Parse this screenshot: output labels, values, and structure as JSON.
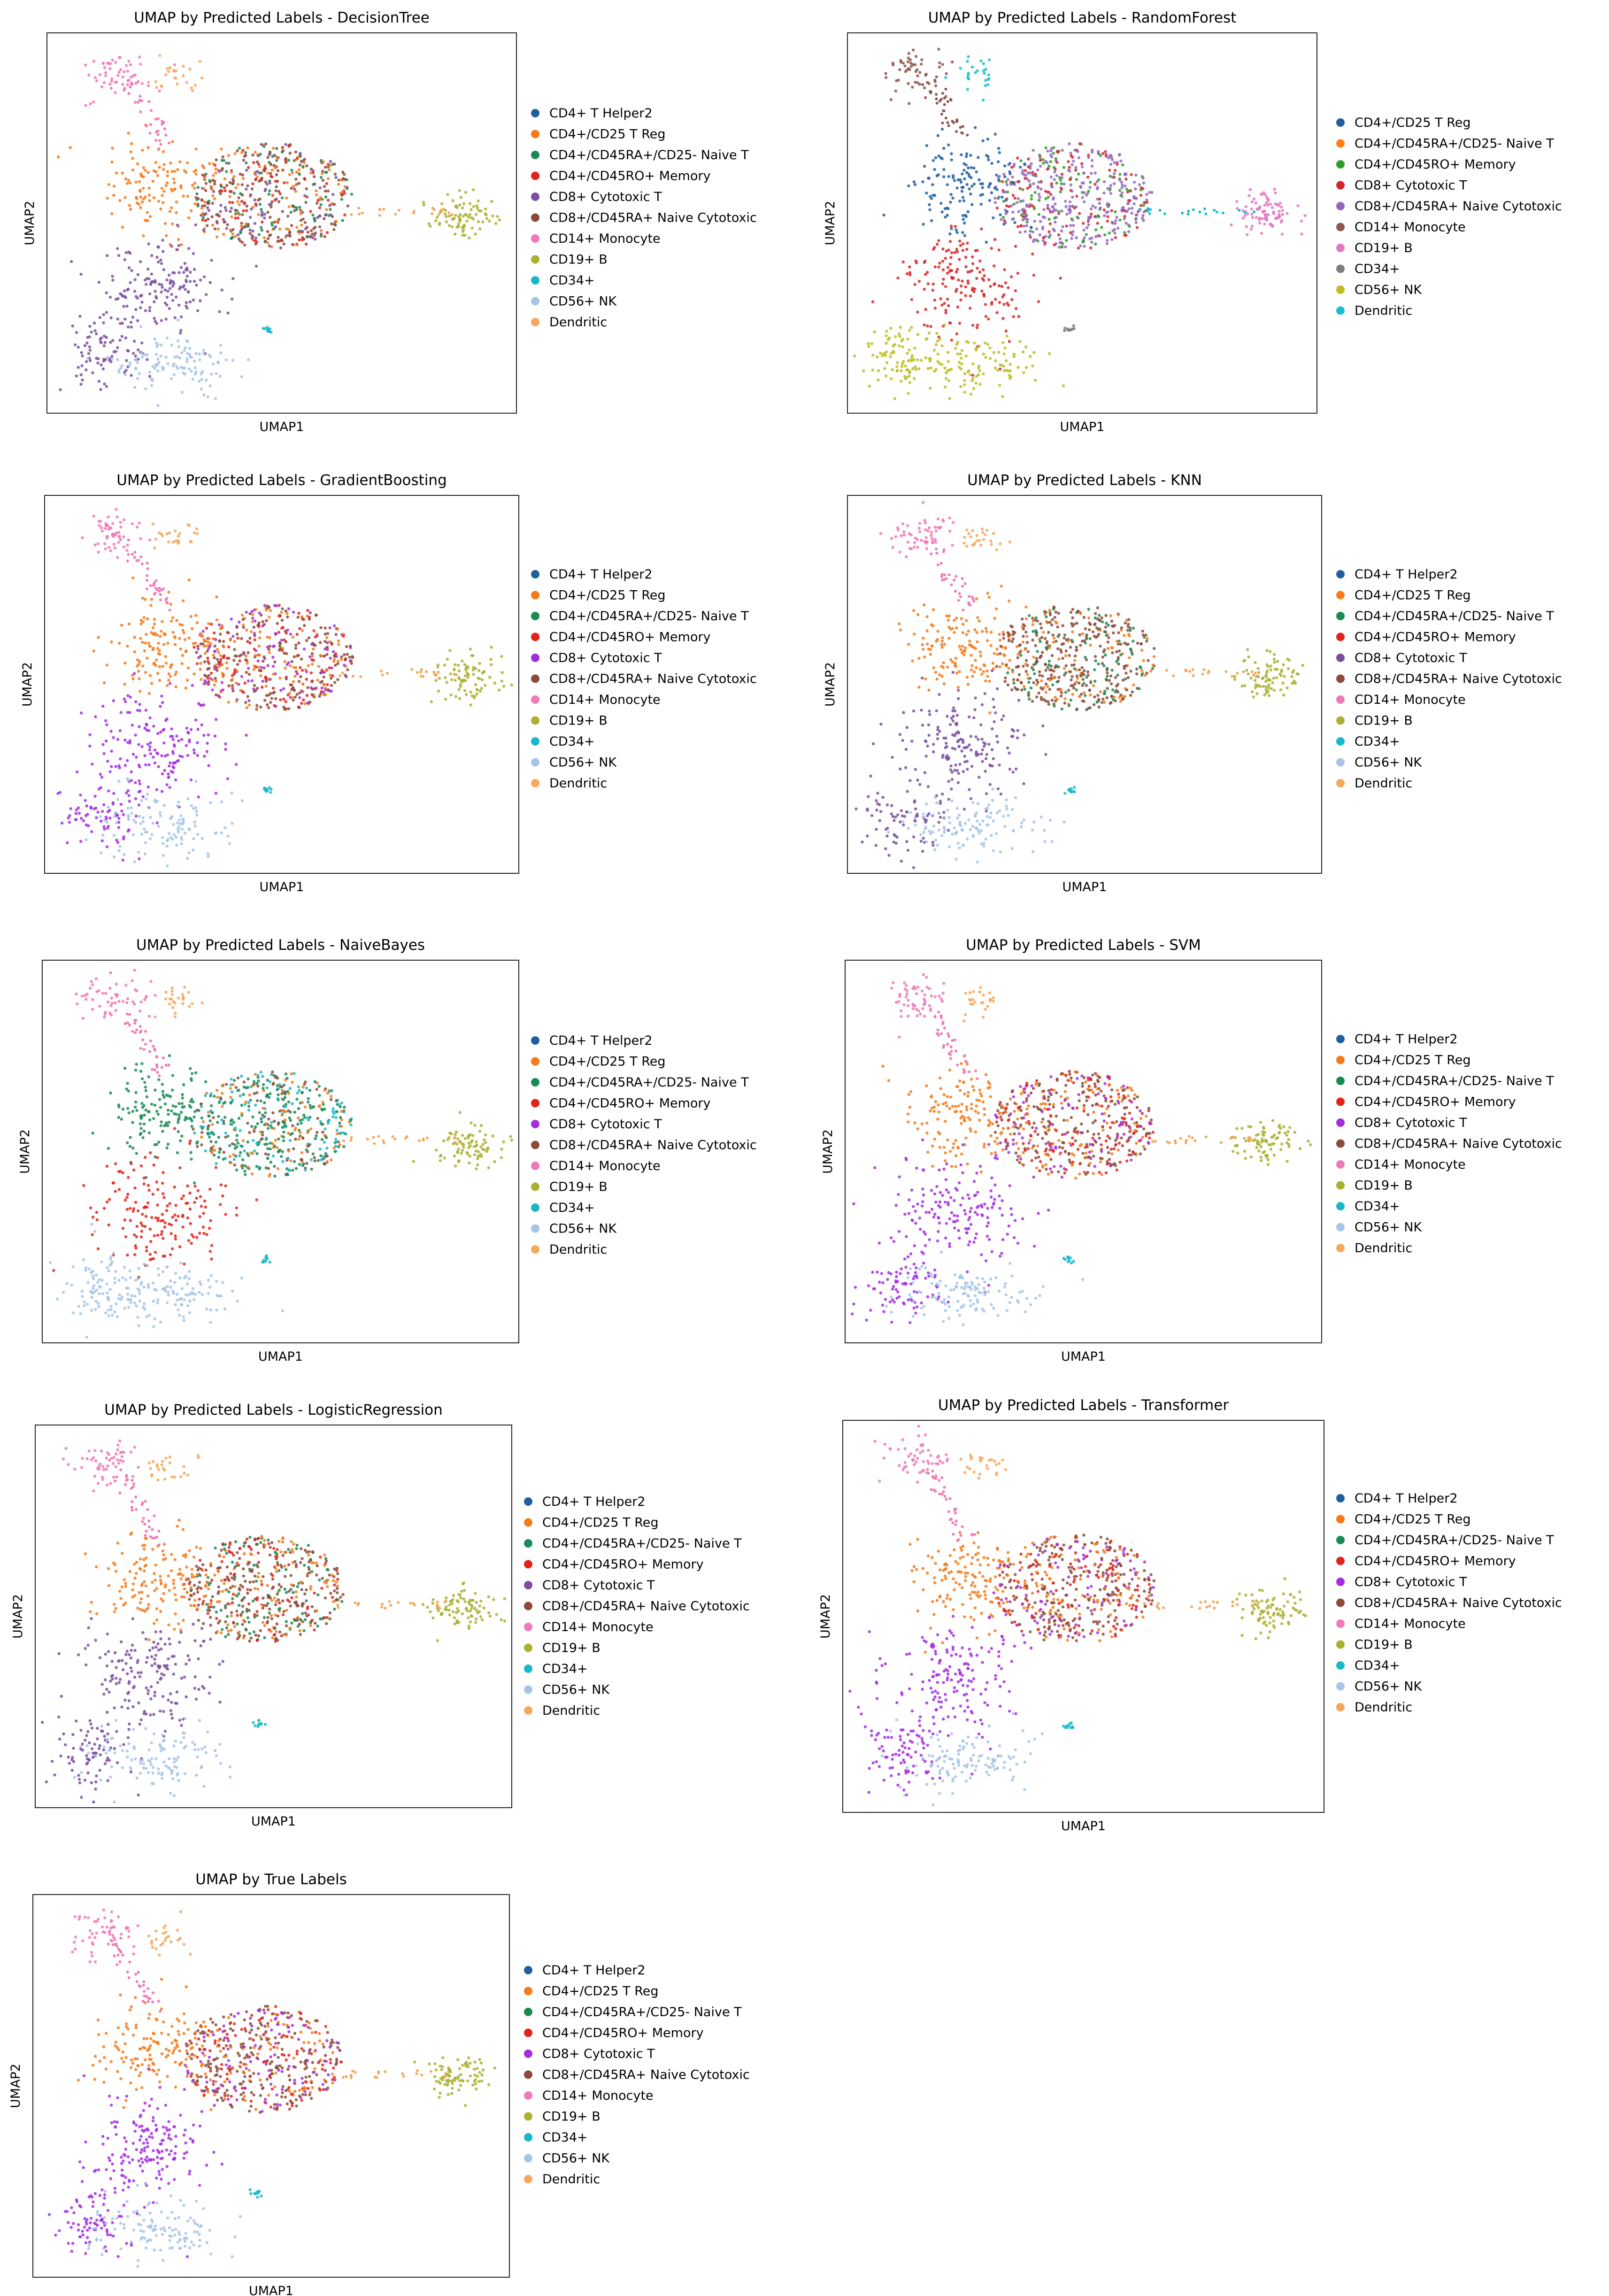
{
  "axis_labels": {
    "x": "UMAP1",
    "y": "UMAP2"
  },
  "palette": {
    "CD4+ T Helper2": "#1f5fa0",
    "CD4+/CD25 T Reg": "#f57a1a",
    "CD4+/CD45RA+/CD25- Naive T": "#1a8a55",
    "CD4+/CD45RO+ Memory": "#e2231a",
    "CD8+ Cytotoxic T purple": "#7b4fa0",
    "CD8+ Cytotoxic T violet": "#a52de0",
    "CD8+/CD45RA+ Naive Cytotoxic": "#8b4a3a",
    "CD14+ Monocyte": "#ef7ab8",
    "CD19+ B": "#aab030",
    "CD34+": "#1ab7c9",
    "CD56+ NK": "#a5c4e6",
    "Dendritic": "#f6a75c",
    "RF Orange": "#ff7f0e",
    "RF Green": "#2ca02c",
    "RF Red": "#d62728",
    "RF Purple": "#9467bd",
    "RF Brown": "#8c564b",
    "RF Pink": "#e377c2",
    "RF Gray": "#7f7f7f",
    "RF Olive": "#bcbd22",
    "RF Cyan": "#17becf"
  },
  "chart_data": [
    {
      "type": "scatter",
      "title": "UMAP by Predicted Labels - DecisionTree",
      "xlabel": "UMAP1",
      "ylabel": "UMAP2",
      "legend": [
        "CD4+ T Helper2",
        "CD4+/CD25 T Reg",
        "CD4+/CD45RA+/CD25- Naive T",
        "CD4+/CD45RO+ Memory",
        "CD8+ Cytotoxic T",
        "CD8+/CD45RA+ Naive Cytotoxic",
        "CD14+ Monocyte",
        "CD19+ B",
        "CD34+",
        "CD56+ NK",
        "Dendritic"
      ],
      "legend_placement": "right",
      "cluster_colors": {
        "main": "CD8+/CD45RA+ Naive Cytotoxic",
        "left": "CD4+/CD25 T Reg",
        "trunk": "CD8+ Cytotoxic T purple",
        "tail": "CD8+ Cytotoxic T purple",
        "nk": "CD56+ NK",
        "mono": "CD14+ Monocyte",
        "dend": "Dendritic",
        "b": "CD19+ B",
        "cd34": "CD34+"
      },
      "mix": [
        "CD8+/CD45RA+ Naive Cytotoxic",
        "CD8+/CD45RA+ Naive Cytotoxic",
        "CD4+/CD25 T Reg",
        "CD4+/CD45RA+/CD25- Naive T",
        "CD4+/CD45RO+ Memory",
        "CD8+ Cytotoxic T purple"
      ]
    },
    {
      "type": "scatter",
      "title": "UMAP by Predicted Labels - RandomForest",
      "xlabel": "UMAP1",
      "ylabel": "UMAP2",
      "legend": [
        "CD4+/CD25 T Reg",
        "CD4+/CD45RA+/CD25- Naive T",
        "CD4+/CD45RO+ Memory",
        "CD8+ Cytotoxic T",
        "CD8+/CD45RA+ Naive Cytotoxic",
        "CD14+ Monocyte",
        "CD19+ B",
        "CD34+",
        "CD56+ NK",
        "Dendritic"
      ],
      "legend_colors": [
        "CD4+ T Helper2",
        "RF Orange",
        "RF Green",
        "RF Red",
        "RF Purple",
        "RF Brown",
        "RF Pink",
        "RF Gray",
        "RF Olive",
        "RF Cyan"
      ],
      "legend_placement": "right",
      "cluster_colors": {
        "main": "RF Purple",
        "left": "CD4+ T Helper2",
        "trunk": "RF Red",
        "tail": "RF Olive",
        "nk": "RF Olive",
        "mono": "RF Brown",
        "dend": "RF Cyan",
        "b": "RF Pink",
        "cd34": "RF Gray"
      },
      "mix": [
        "RF Purple",
        "RF Purple",
        "RF Purple",
        "RF Red",
        "RF Green"
      ]
    },
    {
      "type": "scatter",
      "title": "UMAP by Predicted Labels - GradientBoosting",
      "xlabel": "UMAP1",
      "ylabel": "UMAP2",
      "legend": [
        "CD4+ T Helper2",
        "CD4+/CD25 T Reg",
        "CD4+/CD45RA+/CD25- Naive T",
        "CD4+/CD45RO+ Memory",
        "CD8+ Cytotoxic T",
        "CD8+/CD45RA+ Naive Cytotoxic",
        "CD14+ Monocyte",
        "CD19+ B",
        "CD34+",
        "CD56+ NK",
        "Dendritic"
      ],
      "legend_colors": [
        "CD4+ T Helper2",
        "CD4+/CD25 T Reg",
        "CD4+/CD45RA+/CD25- Naive T",
        "CD4+/CD45RO+ Memory",
        "CD8+ Cytotoxic T violet",
        "CD8+/CD45RA+ Naive Cytotoxic",
        "CD14+ Monocyte",
        "CD19+ B",
        "CD34+",
        "CD56+ NK",
        "Dendritic"
      ],
      "legend_placement": "right",
      "cluster_colors": {
        "main": "CD8+/CD45RA+ Naive Cytotoxic",
        "left": "CD4+/CD25 T Reg",
        "trunk": "CD8+ Cytotoxic T violet",
        "tail": "CD8+ Cytotoxic T violet",
        "nk": "CD56+ NK",
        "mono": "CD14+ Monocyte",
        "dend": "Dendritic",
        "b": "CD19+ B",
        "cd34": "CD34+"
      },
      "mix": [
        "CD8+/CD45RA+ Naive Cytotoxic",
        "CD8+/CD45RA+ Naive Cytotoxic",
        "CD4+/CD25 T Reg",
        "CD4+/CD45RO+ Memory",
        "CD8+ Cytotoxic T violet"
      ]
    },
    {
      "type": "scatter",
      "title": "UMAP by Predicted Labels - KNN",
      "xlabel": "UMAP1",
      "ylabel": "UMAP2",
      "legend": [
        "CD4+ T Helper2",
        "CD4+/CD25 T Reg",
        "CD4+/CD45RA+/CD25- Naive T",
        "CD4+/CD45RO+ Memory",
        "CD8+ Cytotoxic T",
        "CD8+/CD45RA+ Naive Cytotoxic",
        "CD14+ Monocyte",
        "CD19+ B",
        "CD34+",
        "CD56+ NK",
        "Dendritic"
      ],
      "legend_placement": "right",
      "cluster_colors": {
        "main": "CD8+/CD45RA+ Naive Cytotoxic",
        "left": "CD4+/CD25 T Reg",
        "trunk": "CD8+ Cytotoxic T purple",
        "tail": "CD8+ Cytotoxic T purple",
        "nk": "CD56+ NK",
        "mono": "CD14+ Monocyte",
        "dend": "Dendritic",
        "b": "CD19+ B",
        "cd34": "CD34+"
      },
      "mix": [
        "CD8+/CD45RA+ Naive Cytotoxic",
        "CD8+/CD45RA+ Naive Cytotoxic",
        "CD8+/CD45RA+ Naive Cytotoxic",
        "CD4+/CD25 T Reg",
        "CD4+/CD45RA+/CD25- Naive T"
      ]
    },
    {
      "type": "scatter",
      "title": "UMAP by Predicted Labels - NaiveBayes",
      "xlabel": "UMAP1",
      "ylabel": "UMAP2",
      "legend": [
        "CD4+ T Helper2",
        "CD4+/CD25 T Reg",
        "CD4+/CD45RA+/CD25- Naive T",
        "CD4+/CD45RO+ Memory",
        "CD8+ Cytotoxic T",
        "CD8+/CD45RA+ Naive Cytotoxic",
        "CD14+ Monocyte",
        "CD19+ B",
        "CD34+",
        "CD56+ NK",
        "Dendritic"
      ],
      "legend_colors": [
        "CD4+ T Helper2",
        "CD4+/CD25 T Reg",
        "CD4+/CD45RA+/CD25- Naive T",
        "CD4+/CD45RO+ Memory",
        "CD8+ Cytotoxic T violet",
        "CD8+/CD45RA+ Naive Cytotoxic",
        "CD14+ Monocyte",
        "CD19+ B",
        "CD34+",
        "CD56+ NK",
        "Dendritic"
      ],
      "legend_placement": "right",
      "cluster_colors": {
        "main": "CD4+/CD45RA+/CD25- Naive T",
        "left": "CD4+/CD45RA+/CD25- Naive T",
        "trunk": "CD4+/CD45RO+ Memory",
        "tail": "CD56+ NK",
        "nk": "CD56+ NK",
        "mono": "CD14+ Monocyte",
        "dend": "Dendritic",
        "b": "CD19+ B",
        "cd34": "CD34+"
      },
      "mix": [
        "CD4+/CD45RA+/CD25- Naive T",
        "CD4+/CD45RA+/CD25- Naive T",
        "CD34+",
        "CD8+/CD45RA+ Naive Cytotoxic",
        "CD4+/CD25 T Reg"
      ]
    },
    {
      "type": "scatter",
      "title": "UMAP by Predicted Labels - SVM",
      "xlabel": "UMAP1",
      "ylabel": "UMAP2",
      "legend": [
        "CD4+ T Helper2",
        "CD4+/CD25 T Reg",
        "CD4+/CD45RA+/CD25- Naive T",
        "CD4+/CD45RO+ Memory",
        "CD8+ Cytotoxic T",
        "CD8+/CD45RA+ Naive Cytotoxic",
        "CD14+ Monocyte",
        "CD19+ B",
        "CD34+",
        "CD56+ NK",
        "Dendritic"
      ],
      "legend_colors": [
        "CD4+ T Helper2",
        "CD4+/CD25 T Reg",
        "CD4+/CD45RA+/CD25- Naive T",
        "CD4+/CD45RO+ Memory",
        "CD8+ Cytotoxic T violet",
        "CD8+/CD45RA+ Naive Cytotoxic",
        "CD14+ Monocyte",
        "CD19+ B",
        "CD34+",
        "CD56+ NK",
        "Dendritic"
      ],
      "legend_placement": "right",
      "cluster_colors": {
        "main": "CD8+/CD45RA+ Naive Cytotoxic",
        "left": "CD4+/CD25 T Reg",
        "trunk": "CD8+ Cytotoxic T violet",
        "tail": "CD8+ Cytotoxic T violet",
        "nk": "CD56+ NK",
        "mono": "CD14+ Monocyte",
        "dend": "Dendritic",
        "b": "CD19+ B",
        "cd34": "CD34+"
      },
      "mix": [
        "CD8+/CD45RA+ Naive Cytotoxic",
        "CD8+/CD45RA+ Naive Cytotoxic",
        "CD4+/CD25 T Reg",
        "CD4+/CD45RO+ Memory",
        "CD8+ Cytotoxic T violet"
      ]
    },
    {
      "type": "scatter",
      "title": "UMAP by Predicted Labels - LogisticRegression",
      "xlabel": "UMAP1",
      "ylabel": "UMAP2",
      "legend": [
        "CD4+ T Helper2",
        "CD4+/CD25 T Reg",
        "CD4+/CD45RA+/CD25- Naive T",
        "CD4+/CD45RO+ Memory",
        "CD8+ Cytotoxic T",
        "CD8+/CD45RA+ Naive Cytotoxic",
        "CD14+ Monocyte",
        "CD19+ B",
        "CD34+",
        "CD56+ NK",
        "Dendritic"
      ],
      "legend_placement": "right",
      "cluster_colors": {
        "main": "CD8+/CD45RA+ Naive Cytotoxic",
        "left": "CD4+/CD25 T Reg",
        "trunk": "CD8+ Cytotoxic T purple",
        "tail": "CD8+ Cytotoxic T purple",
        "nk": "CD56+ NK",
        "mono": "CD14+ Monocyte",
        "dend": "Dendritic",
        "b": "CD19+ B",
        "cd34": "CD34+"
      },
      "mix": [
        "CD8+/CD45RA+ Naive Cytotoxic",
        "CD8+/CD45RA+ Naive Cytotoxic",
        "CD4+/CD25 T Reg",
        "CD4+/CD45RO+ Memory",
        "CD4+/CD45RA+/CD25- Naive T"
      ]
    },
    {
      "type": "scatter",
      "title": "UMAP by Predicted Labels - Transformer",
      "xlabel": "UMAP1",
      "ylabel": "UMAP2",
      "legend": [
        "CD4+ T Helper2",
        "CD4+/CD25 T Reg",
        "CD4+/CD45RA+/CD25- Naive T",
        "CD4+/CD45RO+ Memory",
        "CD8+ Cytotoxic T",
        "CD8+/CD45RA+ Naive Cytotoxic",
        "CD14+ Monocyte",
        "CD19+ B",
        "CD34+",
        "CD56+ NK",
        "Dendritic"
      ],
      "legend_colors": [
        "CD4+ T Helper2",
        "CD4+/CD25 T Reg",
        "CD4+/CD45RA+/CD25- Naive T",
        "CD4+/CD45RO+ Memory",
        "CD8+ Cytotoxic T violet",
        "CD8+/CD45RA+ Naive Cytotoxic",
        "CD14+ Monocyte",
        "CD19+ B",
        "CD34+",
        "CD56+ NK",
        "Dendritic"
      ],
      "legend_placement": "right",
      "cluster_colors": {
        "main": "CD8+/CD45RA+ Naive Cytotoxic",
        "left": "CD4+/CD25 T Reg",
        "trunk": "CD8+ Cytotoxic T violet",
        "tail": "CD8+ Cytotoxic T violet",
        "nk": "CD56+ NK",
        "mono": "CD14+ Monocyte",
        "dend": "Dendritic",
        "b": "CD19+ B",
        "cd34": "CD34+"
      },
      "mix": [
        "CD8+/CD45RA+ Naive Cytotoxic",
        "CD8+/CD45RA+ Naive Cytotoxic",
        "CD4+/CD25 T Reg",
        "CD4+/CD45RO+ Memory",
        "CD8+ Cytotoxic T violet"
      ]
    },
    {
      "type": "scatter",
      "title": "UMAP by True Labels",
      "xlabel": "UMAP1",
      "ylabel": "UMAP2",
      "legend": [
        "CD4+ T Helper2",
        "CD4+/CD25 T Reg",
        "CD4+/CD45RA+/CD25- Naive T",
        "CD4+/CD45RO+ Memory",
        "CD8+ Cytotoxic T",
        "CD8+/CD45RA+ Naive Cytotoxic",
        "CD14+ Monocyte",
        "CD19+ B",
        "CD34+",
        "CD56+ NK",
        "Dendritic"
      ],
      "legend_colors": [
        "CD4+ T Helper2",
        "CD4+/CD25 T Reg",
        "CD4+/CD45RA+/CD25- Naive T",
        "CD4+/CD45RO+ Memory",
        "CD8+ Cytotoxic T violet",
        "CD8+/CD45RA+ Naive Cytotoxic",
        "CD14+ Monocyte",
        "CD19+ B",
        "CD34+",
        "CD56+ NK",
        "Dendritic"
      ],
      "legend_placement": "right",
      "cluster_colors": {
        "main": "CD8+/CD45RA+ Naive Cytotoxic",
        "left": "CD4+/CD25 T Reg",
        "trunk": "CD8+ Cytotoxic T violet",
        "tail": "CD8+ Cytotoxic T violet",
        "nk": "CD56+ NK",
        "mono": "CD14+ Monocyte",
        "dend": "Dendritic",
        "b": "CD19+ B",
        "cd34": "CD34+"
      },
      "mix": [
        "CD8+/CD45RA+ Naive Cytotoxic",
        "CD8+/CD45RA+ Naive Cytotoxic",
        "CD4+/CD25 T Reg",
        "CD4+/CD45RO+ Memory",
        "CD8+ Cytotoxic T violet"
      ]
    }
  ]
}
